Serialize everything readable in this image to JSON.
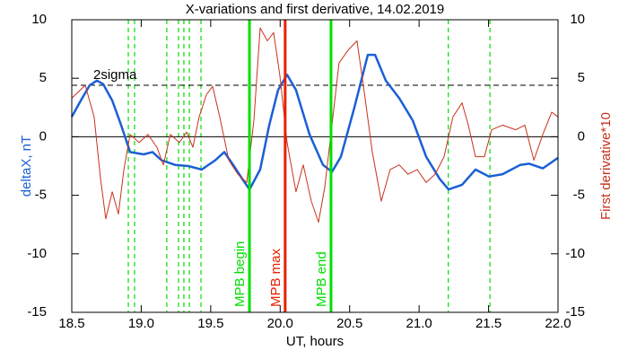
{
  "chart_data": {
    "type": "line",
    "title": "X-variations and first derivative, 14.02.2019",
    "x_label": "UT, hours",
    "y_label": "deltaX, nT",
    "y2_label": "First derivative*10",
    "xlim": [
      18.5,
      22.0
    ],
    "xticks": [
      18.5,
      {
        "value": 19,
        "label": "19.0"
      },
      19.5,
      {
        "value": 20,
        "label": "20.0"
      },
      20.5,
      {
        "value": 21,
        "label": "21.0"
      },
      21.5,
      {
        "value": 22,
        "label": "22.0"
      }
    ],
    "ylim": [
      -15,
      10
    ],
    "yticks": [
      -15,
      -10,
      -5,
      0,
      5,
      10
    ],
    "y2lim": [
      -15,
      10
    ],
    "y2ticks": [
      -15,
      -10,
      -5,
      0,
      5,
      10
    ],
    "zero_line": 0,
    "threshold": {
      "value": 4.4,
      "label": "2sigma"
    },
    "dashed_lines": {
      "color": "#00e000",
      "x": [
        18.907,
        18.952,
        19.184,
        19.268,
        19.307,
        19.346,
        19.43,
        21.21,
        21.51
      ]
    },
    "markers": [
      {
        "x": 19.779,
        "label": "MPB begin",
        "color": "#00e000"
      },
      {
        "x": 20.036,
        "label": "MPB max",
        "color": "#e82000"
      },
      {
        "x": 20.366,
        "label": "MPB end",
        "color": "#00e000"
      }
    ],
    "series": [
      {
        "name": "deltaX",
        "color": "#1a5fd6",
        "axis": "y",
        "x": [
          18.5,
          18.565,
          18.629,
          18.681,
          18.726,
          18.791,
          18.855,
          18.92,
          19.017,
          19.081,
          19.146,
          19.243,
          19.339,
          19.436,
          19.533,
          19.598,
          19.662,
          19.727,
          19.779,
          19.856,
          19.921,
          19.985,
          20.05,
          20.114,
          20.211,
          20.308,
          20.373,
          20.437,
          20.534,
          20.631,
          20.683,
          20.76,
          20.857,
          20.954,
          21.051,
          21.148,
          21.212,
          21.309,
          21.406,
          21.503,
          21.6,
          21.729,
          21.793,
          21.89,
          22.0
        ],
        "values": [
          1.7,
          3.1,
          4.4,
          4.8,
          4.5,
          3.1,
          1.0,
          -1.3,
          -1.5,
          -1.3,
          -2.0,
          -2.4,
          -2.5,
          -2.8,
          -2.0,
          -1.3,
          -2.4,
          -3.6,
          -4.5,
          -2.8,
          1.0,
          4.0,
          5.3,
          4.0,
          0.2,
          -2.4,
          -3.0,
          -1.7,
          2.5,
          7.0,
          7.0,
          4.8,
          3.3,
          1.4,
          -1.7,
          -3.6,
          -4.5,
          -4.1,
          -2.8,
          -3.4,
          -3.2,
          -2.4,
          -2.3,
          -2.7,
          -1.8
        ]
      },
      {
        "name": "First derivative*10",
        "color": "#c8321e",
        "axis": "y2",
        "x": [
          18.5,
          18.597,
          18.661,
          18.707,
          18.745,
          18.791,
          18.836,
          18.875,
          18.92,
          18.984,
          19.049,
          19.113,
          19.159,
          19.21,
          19.275,
          19.327,
          19.372,
          19.417,
          19.469,
          19.514,
          19.565,
          19.63,
          19.695,
          19.759,
          19.811,
          19.856,
          19.908,
          19.953,
          19.998,
          20.05,
          20.114,
          20.166,
          20.224,
          20.276,
          20.321,
          20.373,
          20.424,
          20.489,
          20.553,
          20.599,
          20.663,
          20.728,
          20.792,
          20.857,
          20.921,
          20.986,
          21.051,
          21.115,
          21.18,
          21.244,
          21.309,
          21.354,
          21.406,
          21.47,
          21.522,
          21.6,
          21.696,
          21.761,
          21.826,
          21.89,
          21.955,
          22.0
        ],
        "values": [
          3.3,
          4.4,
          1.7,
          -3.6,
          -7.0,
          -4.7,
          -6.6,
          -2.8,
          0.2,
          -0.5,
          0.2,
          -0.9,
          -2.4,
          0.2,
          -0.5,
          0.4,
          -0.9,
          1.7,
          3.6,
          4.3,
          1.7,
          -2.0,
          -3.2,
          -3.9,
          1.4,
          9.3,
          8.2,
          8.9,
          5.2,
          -0.5,
          -4.7,
          -2.4,
          -5.5,
          -7.3,
          -4.3,
          1.0,
          6.3,
          7.4,
          8.2,
          4.4,
          -1.3,
          -5.5,
          -2.8,
          -2.4,
          -3.2,
          -2.8,
          -3.9,
          -3.2,
          -1.7,
          1.7,
          2.9,
          1.0,
          -1.7,
          -1.7,
          0.6,
          1.0,
          0.6,
          1.0,
          -2.0,
          0.2,
          2.1,
          1.7
        ]
      }
    ]
  }
}
